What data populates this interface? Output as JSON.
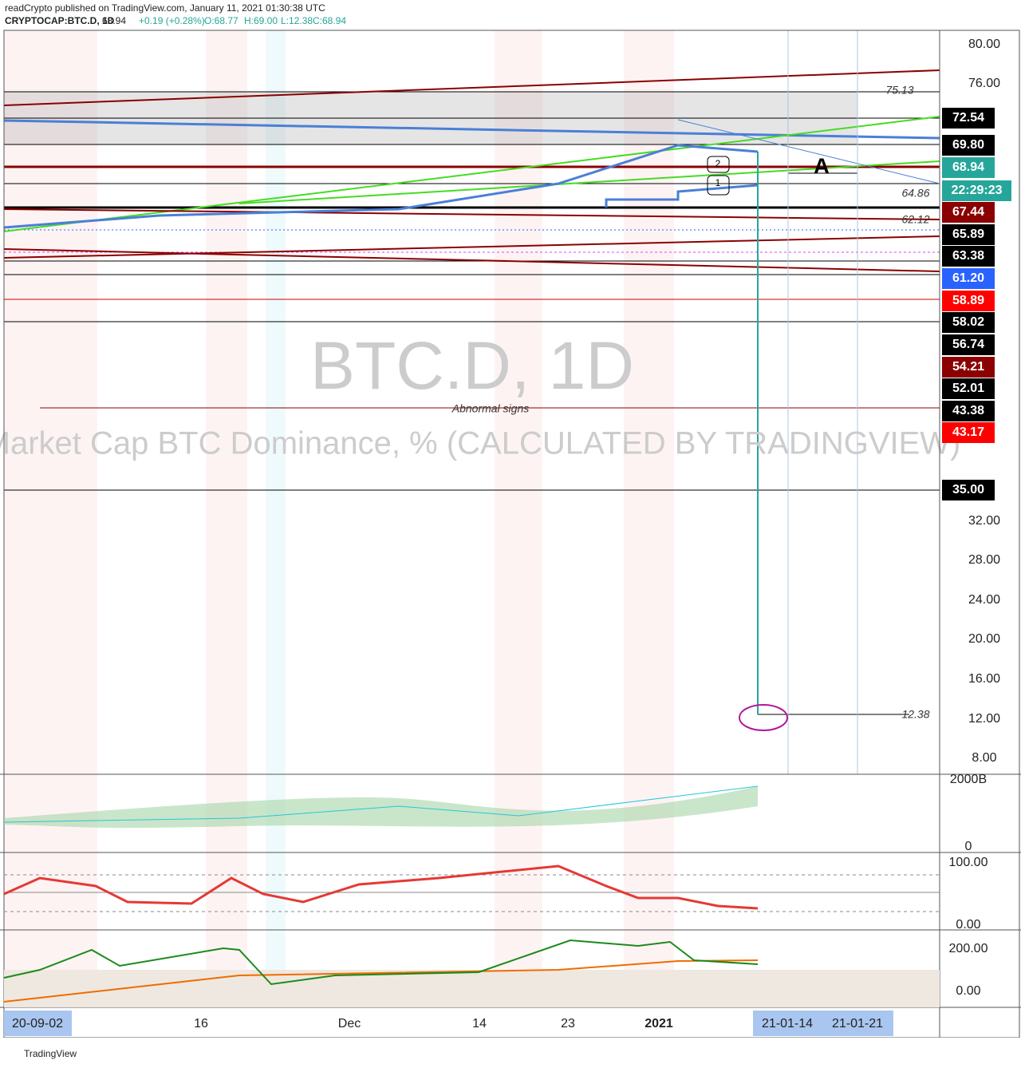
{
  "header": {
    "publisher": "readCrypto published on TradingView.com, January 11, 2021 01:30:38 UTC",
    "symbol": "CRYPTOCAP:BTC.D, 1D",
    "last": "68.94",
    "change": "+0.19 (+0.28%)",
    "open": "O:68.77",
    "high": "H:69.00",
    "low": "L:12.38",
    "close": "C:68.94"
  },
  "watermark": {
    "symbol": "BTC.D, 1D",
    "description": "Market Cap BTC Dominance, % (CALCULATED BY TRADINGVIEW)"
  },
  "price_axis": [
    "80.00",
    "76.00",
    "32.00",
    "28.00",
    "24.00",
    "20.00",
    "16.00",
    "12.00",
    "8.00"
  ],
  "price_tags": [
    {
      "text": "72.54",
      "color": "#000000"
    },
    {
      "text": "69.80",
      "color": "#000000"
    },
    {
      "text": "68.94",
      "color": "#26a69a"
    },
    {
      "text": "22:29:23",
      "color": "#26a69a"
    },
    {
      "text": "67.44",
      "color": "#8b0000"
    },
    {
      "text": "65.89",
      "color": "#000000"
    },
    {
      "text": "63.38",
      "color": "#000000"
    },
    {
      "text": "61.20",
      "color": "#2962ff"
    },
    {
      "text": "58.89",
      "color": "#ff0000"
    },
    {
      "text": "58.02",
      "color": "#000000"
    },
    {
      "text": "56.74",
      "color": "#000000"
    },
    {
      "text": "54.21",
      "color": "#8b0000"
    },
    {
      "text": "52.01",
      "color": "#000000"
    },
    {
      "text": "43.38",
      "color": "#000000"
    },
    {
      "text": "43.17",
      "color": "#ff0000"
    },
    {
      "text": "35.00",
      "color": "#000000"
    }
  ],
  "annotations": [
    "75.13",
    "64.86",
    "62.12",
    "12.38",
    "A",
    "Abnormal signs",
    "2",
    "1"
  ],
  "panes": [
    [
      "2000B",
      "0"
    ],
    [
      "100.00",
      "0.00"
    ],
    [
      "200.00",
      "0.00"
    ]
  ],
  "time_axis": [
    "20-09-02",
    "16",
    "Dec",
    "14",
    "23",
    "2021",
    "21-01-14",
    "21-01-21"
  ],
  "footer": "TradingView"
}
